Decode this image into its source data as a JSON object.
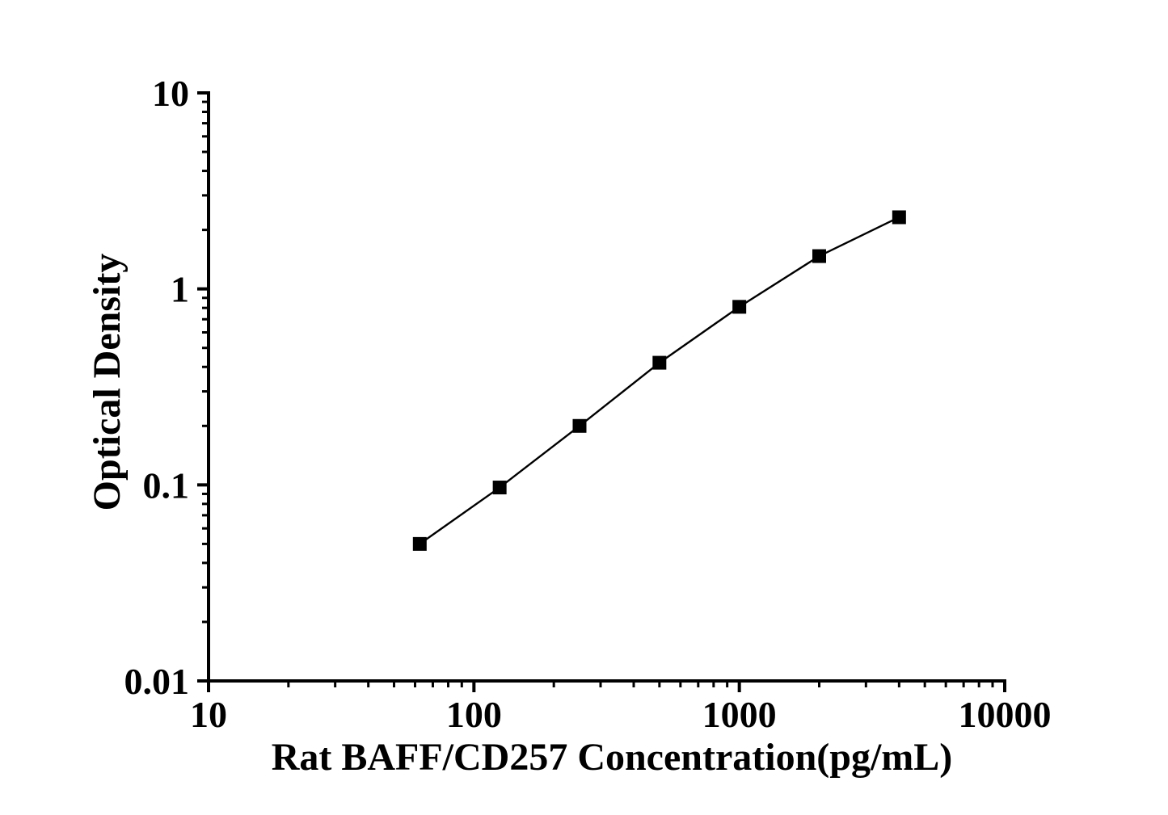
{
  "chart_data": {
    "type": "line",
    "title": "",
    "xlabel": "Rat BAFF/CD257 Concentration(pg/mL)",
    "ylabel": "Optical Density",
    "xscale": "log",
    "yscale": "log",
    "xlim": [
      10,
      10000
    ],
    "ylim": [
      0.01,
      10
    ],
    "x": [
      62.5,
      125,
      250,
      500,
      1000,
      2000,
      4000
    ],
    "y": [
      0.05,
      0.097,
      0.2,
      0.42,
      0.81,
      1.47,
      2.32
    ],
    "x_major_ticks": [
      10,
      100,
      1000,
      10000
    ],
    "x_major_tick_labels": [
      "10",
      "100",
      "1000",
      "10000"
    ],
    "y_major_ticks": [
      0.01,
      0.1,
      1,
      10
    ],
    "y_major_tick_labels": [
      "0.01",
      "0.1",
      "1",
      "10"
    ],
    "minor_ticks": "log-2-to-9-per-decade",
    "grid": false,
    "legend": null,
    "series_name": "standard-curve",
    "marker": "filled-square",
    "marker_size_px": 17,
    "line_color": "#000000",
    "marker_color": "#000000",
    "axis_color": "#000000",
    "background_color": "#ffffff"
  }
}
